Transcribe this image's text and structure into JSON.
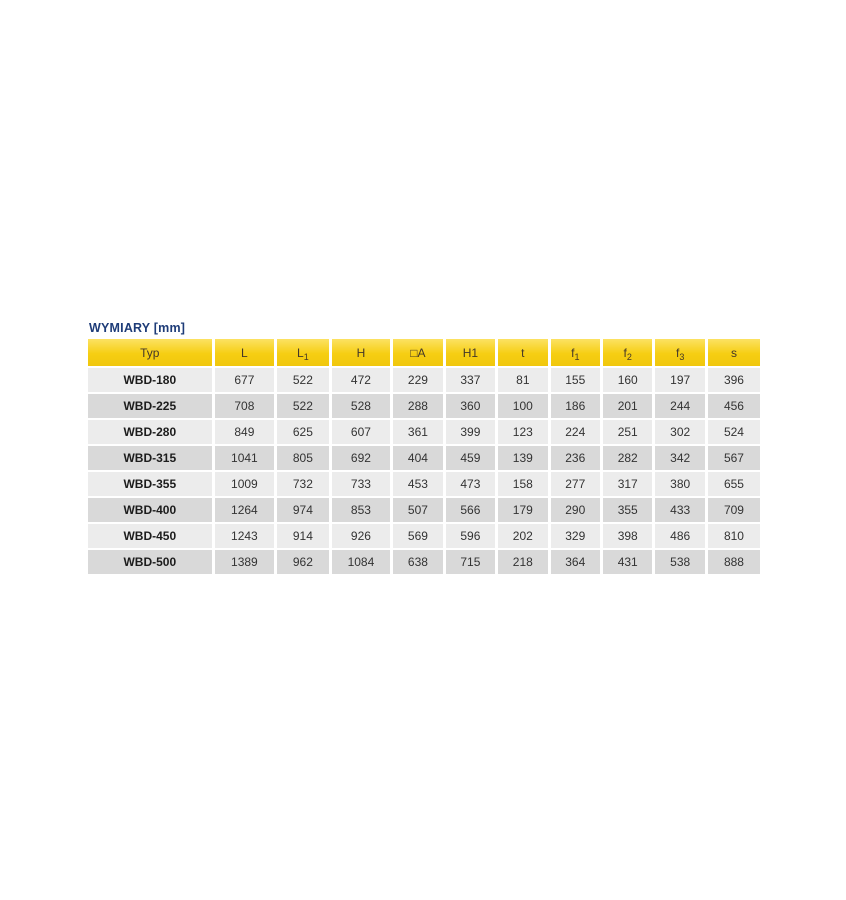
{
  "title": "WYMIARY [mm]",
  "colors": {
    "title_text": "#1e3c78",
    "header_bg": "#f6ce12",
    "header_bg_top": "#fce263",
    "header_text": "#433729",
    "row_light": "#ececec",
    "row_dark": "#d9d9d9",
    "separator": "#ffffff"
  },
  "table": {
    "columns": [
      {
        "base": "Typ",
        "sub": ""
      },
      {
        "base": "L",
        "sub": ""
      },
      {
        "base": "L",
        "sub": "1"
      },
      {
        "base": "H",
        "sub": ""
      },
      {
        "base": "□A",
        "sub": ""
      },
      {
        "base": "H1",
        "sub": ""
      },
      {
        "base": "t",
        "sub": ""
      },
      {
        "base": "f",
        "sub": "1"
      },
      {
        "base": "f",
        "sub": "2"
      },
      {
        "base": "f",
        "sub": "3"
      },
      {
        "base": "s",
        "sub": ""
      }
    ],
    "rows": [
      {
        "typ": "WBD-180",
        "values": [
          677,
          522,
          472,
          229,
          337,
          81,
          155,
          160,
          197,
          396
        ]
      },
      {
        "typ": "WBD-225",
        "values": [
          708,
          522,
          528,
          288,
          360,
          100,
          186,
          201,
          244,
          456
        ]
      },
      {
        "typ": "WBD-280",
        "values": [
          849,
          625,
          607,
          361,
          399,
          123,
          224,
          251,
          302,
          524
        ]
      },
      {
        "typ": "WBD-315",
        "values": [
          1041,
          805,
          692,
          404,
          459,
          139,
          236,
          282,
          342,
          567
        ]
      },
      {
        "typ": "WBD-355",
        "values": [
          1009,
          732,
          733,
          453,
          473,
          158,
          277,
          317,
          380,
          655
        ]
      },
      {
        "typ": "WBD-400",
        "values": [
          1264,
          974,
          853,
          507,
          566,
          179,
          290,
          355,
          433,
          709
        ]
      },
      {
        "typ": "WBD-450",
        "values": [
          1243,
          914,
          926,
          569,
          596,
          202,
          329,
          398,
          486,
          810
        ]
      },
      {
        "typ": "WBD-500",
        "values": [
          1389,
          962,
          1084,
          638,
          715,
          218,
          364,
          431,
          538,
          888
        ]
      }
    ]
  }
}
